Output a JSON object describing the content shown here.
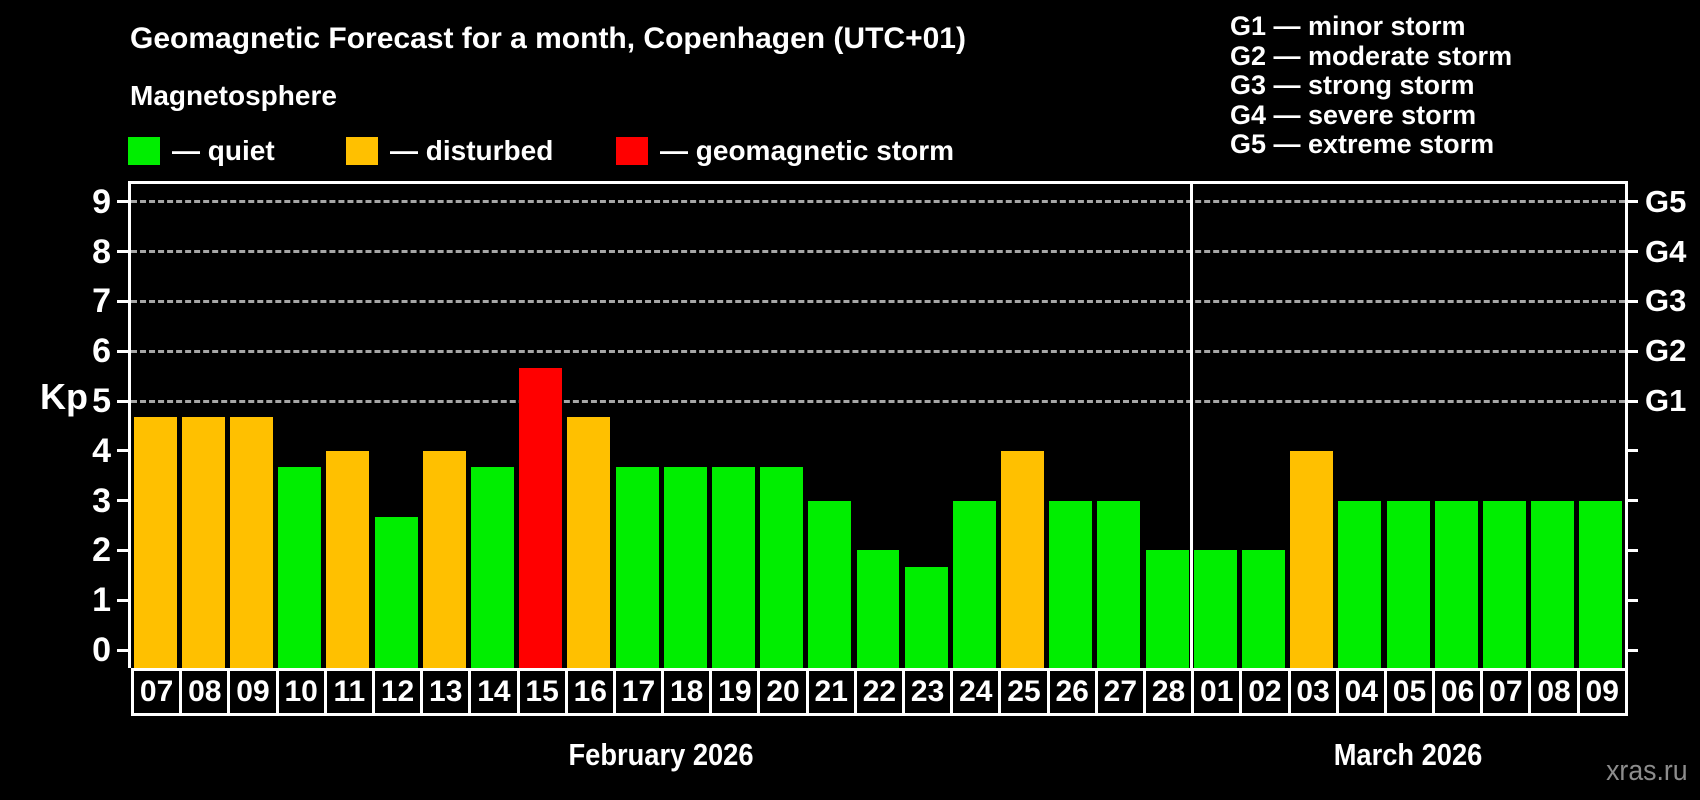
{
  "title": "Geomagnetic Forecast for a month, Copenhagen (UTC+01)",
  "subtitle": "Magnetosphere",
  "legend": {
    "items": [
      {
        "name": "quiet",
        "color": "#00ee00",
        "label": "— quiet"
      },
      {
        "name": "disturbed",
        "color": "#ffc000",
        "label": "— disturbed"
      },
      {
        "name": "storm",
        "color": "#ff0000",
        "label": "— geomagnetic storm"
      }
    ]
  },
  "g_scale_legend": {
    "items": [
      "G1 — minor storm",
      "G2 — moderate storm",
      "G3 — strong storm",
      "G4 — severe storm",
      "G5 — extreme storm"
    ]
  },
  "watermark": "xras.ru",
  "chart_data": {
    "type": "bar",
    "ylabel": "Kp",
    "ylim": [
      -0.37,
      9.37
    ],
    "y_ticks": [
      0,
      1,
      2,
      3,
      4,
      5,
      6,
      7,
      8,
      9
    ],
    "grid_dashed_at": [
      5,
      6,
      7,
      8,
      9
    ],
    "legend_position": "top",
    "right_axis_labels": [
      {
        "text": "G1",
        "value": 5
      },
      {
        "text": "G2",
        "value": 6
      },
      {
        "text": "G3",
        "value": 7
      },
      {
        "text": "G4",
        "value": 8
      },
      {
        "text": "G5",
        "value": 9
      }
    ],
    "status_colors": {
      "quiet": "#00ee00",
      "disturbed": "#ffc000",
      "storm": "#ff0000"
    },
    "months": [
      {
        "label": "February 2026",
        "bars": [
          {
            "day": "07",
            "kp": 4.67,
            "status": "disturbed"
          },
          {
            "day": "08",
            "kp": 4.67,
            "status": "disturbed"
          },
          {
            "day": "09",
            "kp": 4.67,
            "status": "disturbed"
          },
          {
            "day": "10",
            "kp": 3.67,
            "status": "quiet"
          },
          {
            "day": "11",
            "kp": 4.0,
            "status": "disturbed"
          },
          {
            "day": "12",
            "kp": 2.67,
            "status": "quiet"
          },
          {
            "day": "13",
            "kp": 4.0,
            "status": "disturbed"
          },
          {
            "day": "14",
            "kp": 3.67,
            "status": "quiet"
          },
          {
            "day": "15",
            "kp": 5.67,
            "status": "storm"
          },
          {
            "day": "16",
            "kp": 4.67,
            "status": "disturbed"
          },
          {
            "day": "17",
            "kp": 3.67,
            "status": "quiet"
          },
          {
            "day": "18",
            "kp": 3.67,
            "status": "quiet"
          },
          {
            "day": "19",
            "kp": 3.67,
            "status": "quiet"
          },
          {
            "day": "20",
            "kp": 3.67,
            "status": "quiet"
          },
          {
            "day": "21",
            "kp": 3.0,
            "status": "quiet"
          },
          {
            "day": "22",
            "kp": 2.0,
            "status": "quiet"
          },
          {
            "day": "23",
            "kp": 1.67,
            "status": "quiet"
          },
          {
            "day": "24",
            "kp": 3.0,
            "status": "quiet"
          },
          {
            "day": "25",
            "kp": 4.0,
            "status": "disturbed"
          },
          {
            "day": "26",
            "kp": 3.0,
            "status": "quiet"
          },
          {
            "day": "27",
            "kp": 3.0,
            "status": "quiet"
          },
          {
            "day": "28",
            "kp": 2.0,
            "status": "quiet"
          }
        ]
      },
      {
        "label": "March 2026",
        "bars": [
          {
            "day": "01",
            "kp": 2.0,
            "status": "quiet"
          },
          {
            "day": "02",
            "kp": 2.0,
            "status": "quiet"
          },
          {
            "day": "03",
            "kp": 4.0,
            "status": "disturbed"
          },
          {
            "day": "04",
            "kp": 3.0,
            "status": "quiet"
          },
          {
            "day": "05",
            "kp": 3.0,
            "status": "quiet"
          },
          {
            "day": "06",
            "kp": 3.0,
            "status": "quiet"
          },
          {
            "day": "07",
            "kp": 3.0,
            "status": "quiet"
          },
          {
            "day": "08",
            "kp": 3.0,
            "status": "quiet"
          },
          {
            "day": "09",
            "kp": 3.0,
            "status": "quiet"
          }
        ]
      }
    ]
  }
}
